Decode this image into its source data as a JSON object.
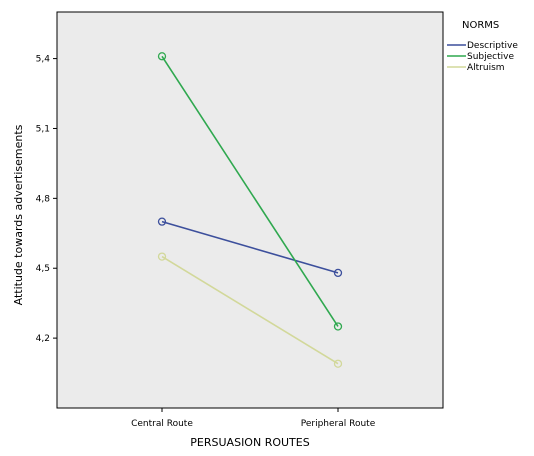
{
  "chart_data": {
    "type": "line",
    "title": "",
    "xlabel": "PERSUASION ROUTES",
    "ylabel": "Attitude towards advertisements",
    "categories": [
      "Central Route",
      "Peripheral Route"
    ],
    "ylim": [
      3.9,
      5.6
    ],
    "yticks": [
      "4,2",
      "4,5",
      "4,8",
      "5,1",
      "5,4"
    ],
    "ytick_values": [
      4.2,
      4.5,
      4.8,
      5.1,
      5.4
    ],
    "grid": false,
    "legend_title": "NORMS",
    "legend_position": "top-right",
    "series": [
      {
        "name": "Descriptive",
        "values": [
          4.7,
          4.48
        ],
        "color": "#3c4f9c"
      },
      {
        "name": "Subjective",
        "values": [
          5.41,
          4.25
        ],
        "color": "#2fa84f"
      },
      {
        "name": "Altruism",
        "values": [
          4.55,
          4.09
        ],
        "color": "#d2d89a"
      }
    ]
  }
}
